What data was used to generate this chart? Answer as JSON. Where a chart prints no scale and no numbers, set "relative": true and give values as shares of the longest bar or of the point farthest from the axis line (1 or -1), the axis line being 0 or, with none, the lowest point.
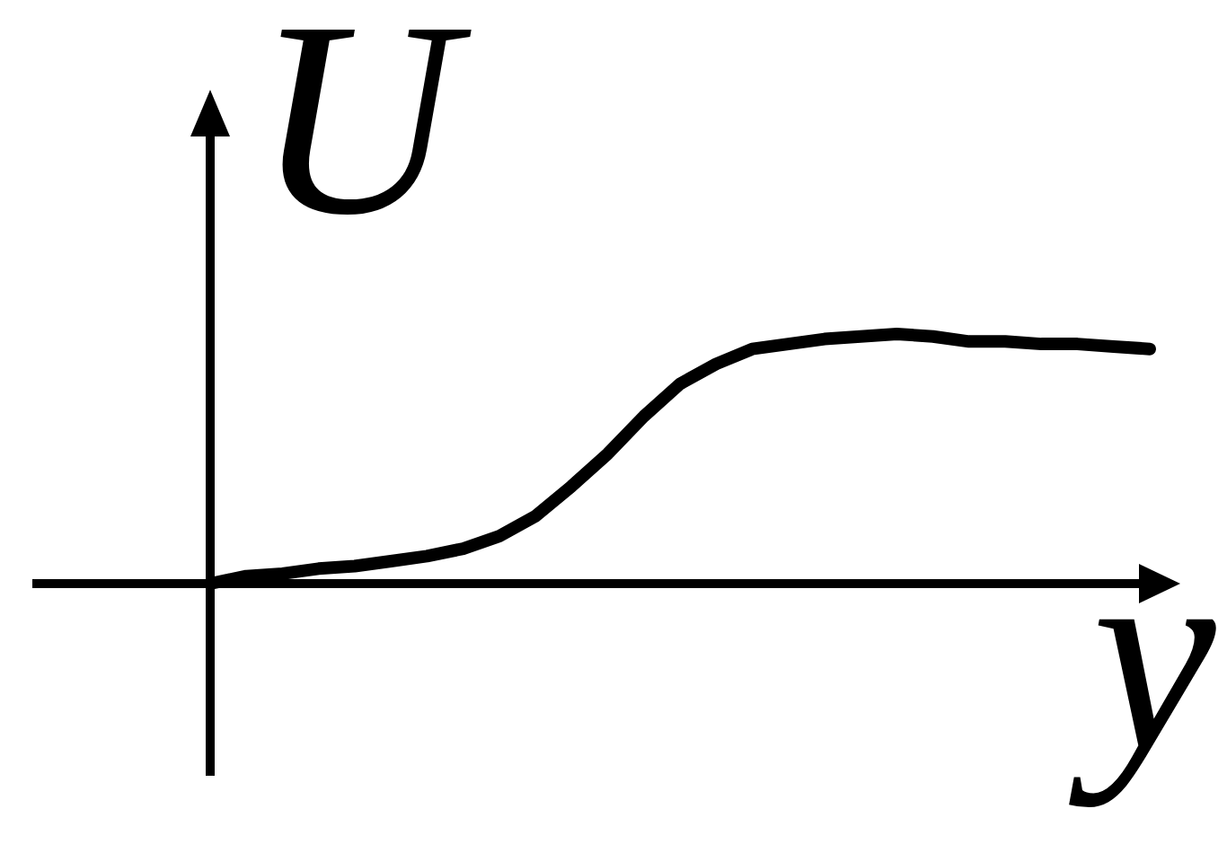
{
  "chart_data": {
    "type": "line",
    "xlabel": "y",
    "ylabel": "U",
    "relative": true,
    "categories": [
      null,
      null,
      null,
      null,
      null,
      null,
      null,
      null,
      null,
      null,
      null,
      null,
      null,
      null,
      null,
      null,
      null,
      null,
      null,
      null,
      null,
      null,
      null,
      null,
      null,
      null,
      null
    ],
    "series": [
      {
        "color": "#000000",
        "values": [
          0,
          0.03,
          0.04,
          0.06,
          0.07,
          0.09,
          0.11,
          0.14,
          0.19,
          0.27,
          0.39,
          0.52,
          0.67,
          0.8,
          0.88,
          0.94,
          0.96,
          0.98,
          0.99,
          1,
          0.99,
          0.97,
          0.97,
          0.96,
          0.96,
          0.95,
          0.94
        ]
      }
    ]
  }
}
